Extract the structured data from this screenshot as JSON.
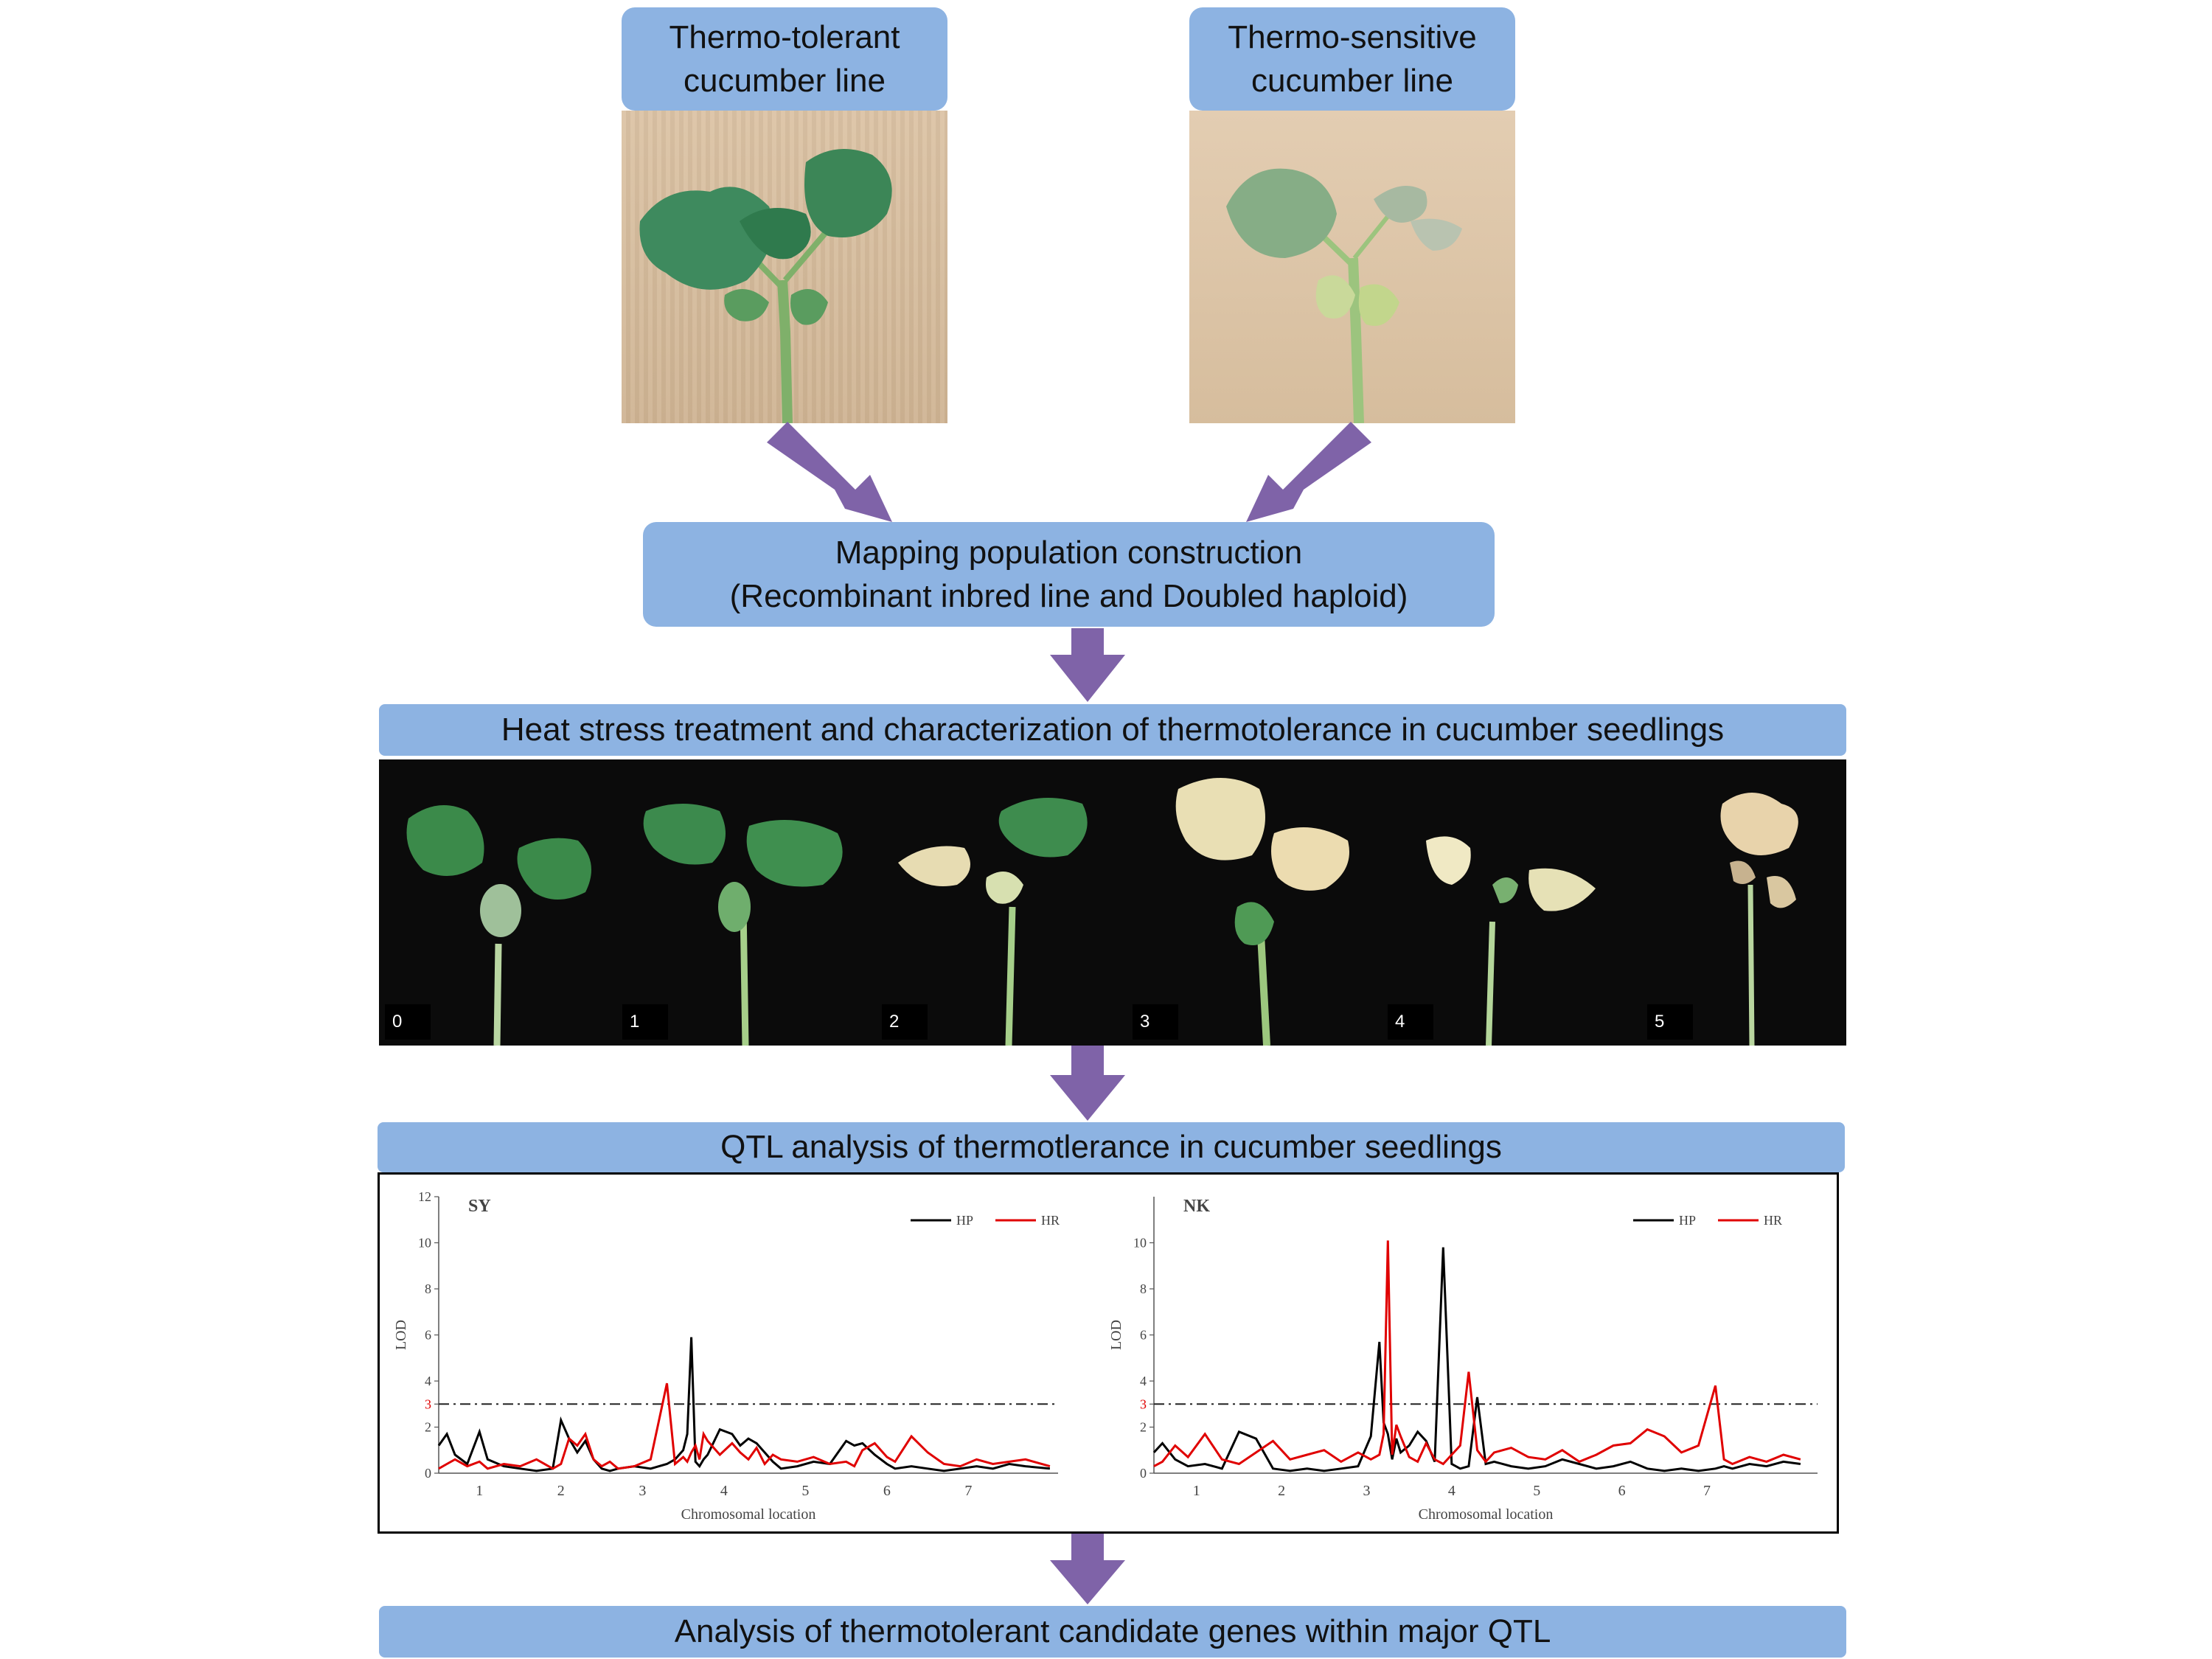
{
  "parent_lines": {
    "tolerant": {
      "line1": "Thermo-tolerant",
      "line2": "cucumber line"
    },
    "sensitive": {
      "line1": "Thermo-sensitive",
      "line2": "cucumber line"
    }
  },
  "mapping": {
    "line1": "Mapping population construction",
    "line2": "(Recombinant inbred line and Doubled haploid)"
  },
  "heat_stress": {
    "title": "Heat stress treatment and characterization of thermotolerance in cucumber seedlings",
    "scores": [
      "0",
      "1",
      "2",
      "3",
      "4",
      "5"
    ]
  },
  "qtl": {
    "title": "QTL  analysis of thermotlerance in cucumber seedlings"
  },
  "final": {
    "title": "Analysis  of thermotolerant candidate genes within major QTL"
  },
  "colors": {
    "box_fill": "#8db3e2",
    "arrow": "#7f63a8",
    "hp_line": "#000000",
    "hr_line": "#e00000"
  },
  "chart_data": [
    {
      "type": "line",
      "title": "SY",
      "xlabel": "Chromosomal location",
      "ylabel": "LOD",
      "ylim": [
        0,
        12
      ],
      "yticks": [
        "0",
        "2",
        "3",
        "4",
        "6",
        "8",
        "10",
        "12"
      ],
      "threshold": 3,
      "threshold_label": "3",
      "chromosomes": [
        "1",
        "2",
        "3",
        "4",
        "5",
        "6",
        "7"
      ],
      "x": [
        0.0,
        0.1,
        0.2,
        0.35,
        0.5,
        0.6,
        0.8,
        1.0,
        1.2,
        1.4,
        1.5,
        1.6,
        1.7,
        1.8,
        1.9,
        2.0,
        2.1,
        2.2,
        2.4,
        2.6,
        2.8,
        2.9,
        3.0,
        3.05,
        3.1,
        3.15,
        3.2,
        3.25,
        3.3,
        3.45,
        3.6,
        3.7,
        3.8,
        3.9,
        4.0,
        4.1,
        4.2,
        4.4,
        4.6,
        4.8,
        5.0,
        5.1,
        5.2,
        5.35,
        5.5,
        5.6,
        5.8,
        6.0,
        6.2,
        6.4,
        6.6,
        6.8,
        7.0,
        7.2,
        7.5
      ],
      "series": [
        {
          "name": "HP",
          "values": [
            1.2,
            1.7,
            0.8,
            0.4,
            1.8,
            0.6,
            0.3,
            0.2,
            0.1,
            0.2,
            2.3,
            1.5,
            0.9,
            1.4,
            0.6,
            0.2,
            0.1,
            0.2,
            0.3,
            0.2,
            0.4,
            0.6,
            1.0,
            1.7,
            5.9,
            0.5,
            0.3,
            0.6,
            0.8,
            1.9,
            1.7,
            1.2,
            1.5,
            1.3,
            0.9,
            0.5,
            0.2,
            0.3,
            0.5,
            0.4,
            1.4,
            1.2,
            1.3,
            0.8,
            0.4,
            0.2,
            0.3,
            0.2,
            0.1,
            0.2,
            0.3,
            0.2,
            0.4,
            0.3,
            0.2
          ]
        },
        {
          "name": "HR",
          "values": [
            0.2,
            0.4,
            0.6,
            0.3,
            0.5,
            0.2,
            0.4,
            0.3,
            0.6,
            0.2,
            0.4,
            1.5,
            1.2,
            1.7,
            0.6,
            0.3,
            0.5,
            0.2,
            0.3,
            0.6,
            3.9,
            0.4,
            0.7,
            0.5,
            0.9,
            1.2,
            0.6,
            1.7,
            1.4,
            0.8,
            1.3,
            0.9,
            0.6,
            1.1,
            0.4,
            0.8,
            0.6,
            0.5,
            0.7,
            0.4,
            0.5,
            0.3,
            1.0,
            1.3,
            0.7,
            0.5,
            1.6,
            0.9,
            0.4,
            0.3,
            0.6,
            0.4,
            0.5,
            0.6,
            0.3
          ]
        }
      ]
    },
    {
      "type": "line",
      "title": "NK",
      "xlabel": "Chromosomal location",
      "ylabel": "LOD",
      "ylim": [
        0,
        12
      ],
      "yticks": [
        "0",
        "2",
        "3",
        "4",
        "6",
        "8",
        "10"
      ],
      "threshold": 3,
      "threshold_label": "3",
      "chromosomes": [
        "1",
        "2",
        "3",
        "4",
        "5",
        "6",
        "7"
      ],
      "x": [
        0.0,
        0.1,
        0.25,
        0.4,
        0.6,
        0.8,
        1.0,
        1.2,
        1.4,
        1.6,
        1.8,
        2.0,
        2.2,
        2.4,
        2.55,
        2.65,
        2.7,
        2.75,
        2.8,
        2.85,
        2.9,
        3.0,
        3.1,
        3.2,
        3.3,
        3.4,
        3.5,
        3.6,
        3.7,
        3.8,
        3.9,
        4.0,
        4.2,
        4.4,
        4.6,
        4.8,
        5.0,
        5.2,
        5.4,
        5.6,
        5.8,
        6.0,
        6.2,
        6.4,
        6.6,
        6.7,
        6.8,
        7.0,
        7.2,
        7.4,
        7.6
      ],
      "series": [
        {
          "name": "HP",
          "values": [
            0.9,
            1.3,
            0.6,
            0.3,
            0.4,
            0.2,
            1.8,
            1.5,
            0.2,
            0.1,
            0.2,
            0.1,
            0.2,
            0.3,
            1.6,
            5.7,
            2.2,
            1.7,
            0.6,
            1.5,
            0.9,
            1.2,
            1.8,
            1.4,
            0.5,
            9.8,
            0.4,
            0.2,
            0.3,
            3.3,
            0.4,
            0.5,
            0.3,
            0.2,
            0.3,
            0.6,
            0.4,
            0.2,
            0.3,
            0.5,
            0.2,
            0.1,
            0.2,
            0.1,
            0.2,
            0.3,
            0.2,
            0.4,
            0.3,
            0.5,
            0.4
          ]
        },
        {
          "name": "HR",
          "values": [
            0.3,
            0.5,
            1.2,
            0.7,
            1.7,
            0.6,
            0.4,
            0.9,
            1.4,
            0.6,
            0.8,
            1.0,
            0.5,
            0.9,
            0.6,
            0.8,
            1.7,
            10.1,
            0.8,
            2.1,
            1.6,
            0.7,
            0.5,
            1.3,
            0.6,
            0.4,
            0.8,
            1.2,
            4.4,
            1.0,
            0.5,
            0.9,
            1.1,
            0.7,
            0.6,
            1.0,
            0.5,
            0.8,
            1.2,
            1.3,
            1.9,
            1.6,
            0.9,
            1.2,
            3.8,
            0.6,
            0.4,
            0.7,
            0.5,
            0.8,
            0.6
          ]
        }
      ]
    }
  ]
}
